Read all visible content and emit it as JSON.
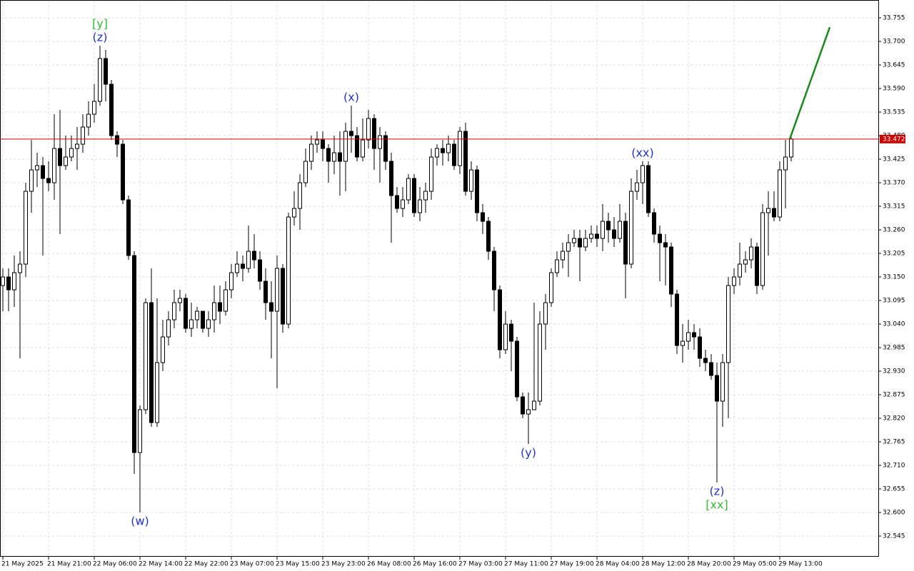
{
  "chart_data": {
    "type": "candlestick",
    "categories": [
      "21 May 2025",
      null,
      null,
      null,
      null,
      null,
      null,
      null,
      "21 May 21:00",
      null,
      null,
      null,
      null,
      null,
      null,
      null,
      "22 May 06:00",
      null,
      null,
      null,
      null,
      null,
      null,
      null,
      "22 May 14:00",
      null,
      null,
      null,
      null,
      null,
      null,
      null,
      "22 May 22:00",
      null,
      null,
      null,
      null,
      null,
      null,
      null,
      "23 May 07:00",
      null,
      null,
      null,
      null,
      null,
      null,
      null,
      "23 May 15:00",
      null,
      null,
      null,
      null,
      null,
      null,
      null,
      "23 May 23:00",
      null,
      null,
      null,
      null,
      null,
      null,
      null,
      "26 May 08:00",
      null,
      null,
      null,
      null,
      null,
      null,
      null,
      "26 May 16:00",
      null,
      null,
      null,
      null,
      null,
      null,
      null,
      "27 May 03:00",
      null,
      null,
      null,
      null,
      null,
      null,
      null,
      "27 May 11:00",
      null,
      null,
      null,
      null,
      null,
      null,
      null,
      "27 May 19:00",
      null,
      null,
      null,
      null,
      null,
      null,
      null,
      "28 May 04:00",
      null,
      null,
      null,
      null,
      null,
      null,
      null,
      "28 May 12:00",
      null,
      null,
      null,
      null,
      null,
      null,
      null,
      "28 May 20:00",
      null,
      null,
      null,
      null,
      null,
      null,
      null,
      "29 May 05:00",
      null,
      null,
      null,
      null,
      null,
      null,
      null,
      "29 May 13:00",
      null,
      null
    ],
    "open": [
      33.13,
      33.15,
      33.12,
      33.16,
      33.18,
      33.35,
      33.4,
      33.41,
      33.38,
      33.37,
      33.45,
      33.41,
      33.43,
      33.45,
      33.46,
      33.5,
      33.53,
      33.56,
      33.66,
      33.6,
      33.48,
      33.46,
      33.33,
      33.2,
      32.74,
      32.84,
      33.09,
      32.81,
      32.95,
      33.01,
      33.05,
      33.09,
      33.1,
      33.03,
      33.05,
      33.07,
      33.03,
      33.05,
      33.09,
      33.07,
      33.12,
      33.16,
      33.18,
      33.17,
      33.21,
      33.19,
      33.14,
      33.09,
      33.07,
      33.17,
      33.04,
      33.29,
      33.31,
      33.37,
      33.42,
      33.46,
      33.47,
      33.45,
      33.42,
      33.44,
      33.42,
      33.49,
      33.48,
      33.43,
      33.47,
      33.52,
      33.45,
      33.48,
      33.42,
      33.34,
      33.31,
      33.33,
      33.38,
      33.3,
      33.33,
      33.35,
      33.43,
      33.45,
      33.44,
      33.46,
      33.41,
      33.49,
      33.35,
      33.4,
      33.3,
      33.28,
      33.21,
      33.12,
      32.98,
      33.04,
      33.0,
      32.87,
      32.83,
      32.84,
      32.86,
      33.04,
      33.09,
      33.16,
      33.19,
      33.21,
      33.23,
      33.24,
      33.22,
      33.24,
      33.25,
      33.24,
      33.28,
      33.26,
      33.24,
      33.28,
      33.18,
      33.35,
      33.37,
      33.41,
      33.3,
      33.25,
      33.23,
      33.22,
      33.11,
      32.99,
      33.0,
      33.02,
      33.01,
      32.96,
      32.95,
      32.92,
      32.86,
      32.95,
      33.13,
      33.15,
      33.18,
      33.19,
      33.22,
      33.13,
      33.3,
      33.31,
      33.29,
      33.4,
      33.43
    ],
    "high": [
      33.17,
      33.17,
      33.2,
      33.21,
      33.37,
      33.47,
      33.44,
      33.43,
      33.42,
      33.53,
      33.54,
      33.48,
      33.48,
      33.5,
      33.53,
      33.56,
      33.6,
      33.69,
      33.68,
      33.61,
      33.49,
      33.47,
      33.34,
      33.21,
      32.85,
      33.1,
      33.17,
      33.1,
      33.05,
      33.07,
      33.12,
      33.12,
      33.11,
      33.09,
      33.08,
      33.07,
      33.07,
      33.13,
      33.13,
      33.14,
      33.18,
      33.21,
      33.2,
      33.27,
      33.25,
      33.21,
      33.17,
      33.14,
      33.2,
      33.18,
      33.3,
      33.35,
      33.39,
      33.45,
      33.48,
      33.49,
      33.49,
      33.46,
      33.48,
      33.49,
      33.51,
      33.55,
      33.5,
      33.52,
      33.54,
      33.53,
      33.5,
      33.49,
      33.44,
      33.36,
      33.36,
      33.39,
      33.39,
      33.36,
      33.37,
      33.45,
      33.46,
      33.47,
      33.48,
      33.47,
      33.5,
      33.51,
      33.42,
      33.41,
      33.32,
      33.29,
      33.22,
      33.13,
      33.07,
      33.05,
      33.01,
      32.88,
      32.88,
      33.09,
      33.07,
      33.11,
      33.17,
      33.21,
      33.23,
      33.25,
      33.26,
      33.26,
      33.26,
      33.27,
      33.27,
      33.32,
      33.3,
      33.29,
      33.32,
      33.3,
      33.38,
      33.4,
      33.42,
      33.42,
      33.31,
      33.27,
      33.25,
      33.23,
      33.12,
      33.04,
      33.05,
      33.04,
      33.03,
      32.98,
      32.97,
      32.95,
      32.97,
      33.15,
      33.17,
      33.23,
      33.21,
      33.24,
      33.23,
      33.32,
      33.35,
      33.35,
      33.42,
      33.47,
      33.48
    ],
    "low": [
      33.07,
      33.07,
      33.08,
      32.96,
      33.15,
      33.3,
      33.36,
      33.2,
      33.35,
      33.33,
      33.25,
      33.4,
      33.42,
      33.4,
      33.44,
      33.48,
      33.51,
      33.55,
      33.56,
      33.47,
      33.43,
      33.32,
      33.19,
      32.69,
      32.6,
      32.83,
      32.8,
      32.8,
      32.93,
      32.99,
      33.03,
      33.07,
      33.02,
      33.01,
      33.03,
      33.02,
      33.01,
      33.02,
      33.04,
      33.06,
      33.1,
      33.15,
      33.14,
      33.16,
      33.17,
      33.12,
      33.05,
      32.96,
      32.89,
      33.02,
      33.03,
      33.27,
      33.26,
      33.36,
      33.4,
      33.44,
      33.42,
      33.37,
      33.39,
      33.34,
      33.35,
      33.44,
      33.42,
      33.42,
      33.45,
      33.4,
      33.37,
      33.4,
      33.23,
      33.3,
      33.29,
      33.32,
      33.29,
      33.28,
      33.3,
      33.33,
      33.41,
      33.41,
      33.42,
      33.4,
      33.39,
      33.34,
      33.33,
      33.28,
      33.25,
      33.19,
      33.07,
      32.96,
      32.97,
      32.93,
      32.86,
      32.82,
      32.76,
      32.85,
      32.85,
      32.98,
      33.08,
      33.15,
      33.17,
      33.15,
      33.22,
      33.14,
      33.21,
      33.23,
      33.22,
      33.21,
      33.23,
      33.22,
      33.23,
      33.1,
      33.17,
      33.33,
      33.32,
      33.29,
      33.23,
      33.14,
      33.13,
      33.08,
      32.97,
      32.95,
      32.98,
      32.98,
      32.94,
      32.93,
      32.91,
      32.67,
      32.8,
      32.82,
      33.11,
      33.13,
      33.16,
      33.17,
      33.11,
      33.12,
      33.2,
      33.28,
      33.28,
      33.31,
      33.42
    ],
    "close": [
      33.15,
      33.12,
      33.16,
      33.18,
      33.35,
      33.4,
      33.41,
      33.38,
      33.37,
      33.45,
      33.41,
      33.43,
      33.45,
      33.46,
      33.5,
      33.53,
      33.56,
      33.66,
      33.6,
      33.48,
      33.46,
      33.33,
      33.2,
      32.74,
      32.84,
      33.09,
      32.81,
      32.95,
      33.01,
      33.05,
      33.09,
      33.1,
      33.03,
      33.05,
      33.07,
      33.03,
      33.05,
      33.09,
      33.07,
      33.12,
      33.16,
      33.18,
      33.17,
      33.21,
      33.19,
      33.14,
      33.09,
      33.07,
      33.17,
      33.04,
      33.29,
      33.31,
      33.37,
      33.42,
      33.46,
      33.47,
      33.45,
      33.42,
      33.44,
      33.42,
      33.49,
      33.48,
      33.43,
      33.47,
      33.52,
      33.45,
      33.48,
      33.42,
      33.34,
      33.31,
      33.33,
      33.38,
      33.3,
      33.33,
      33.35,
      33.43,
      33.45,
      33.44,
      33.46,
      33.41,
      33.49,
      33.35,
      33.4,
      33.3,
      33.28,
      33.21,
      33.12,
      32.98,
      33.04,
      33.0,
      32.87,
      32.83,
      32.84,
      32.86,
      33.04,
      33.09,
      33.16,
      33.19,
      33.21,
      33.23,
      33.24,
      33.22,
      33.24,
      33.25,
      33.24,
      33.28,
      33.26,
      33.24,
      33.28,
      33.18,
      33.35,
      33.37,
      33.41,
      33.3,
      33.25,
      33.23,
      33.22,
      33.11,
      32.99,
      33.0,
      33.02,
      33.01,
      32.96,
      32.95,
      32.92,
      32.86,
      32.95,
      33.13,
      33.15,
      33.18,
      33.19,
      33.22,
      33.13,
      33.3,
      33.31,
      33.29,
      33.4,
      33.43,
      33.472
    ],
    "ylim": [
      32.4967,
      33.7967
    ],
    "yticks": [
      33.755,
      {
        "value": 33.7,
        "label": "33.700"
      },
      33.645,
      {
        "value": 33.59,
        "label": "33.590"
      },
      33.535,
      {
        "value": 33.48,
        "label": "33.480"
      },
      33.425,
      {
        "value": 33.37,
        "label": "33.370"
      },
      33.315,
      {
        "value": 33.26,
        "label": "33.260"
      },
      33.205,
      {
        "value": 33.15,
        "label": "33.150"
      },
      33.095,
      {
        "value": 33.04,
        "label": "33.040"
      },
      32.985,
      {
        "value": 32.93,
        "label": "32.930"
      },
      32.875,
      {
        "value": 32.82,
        "label": "32.820"
      },
      32.765,
      {
        "value": 32.71,
        "label": "32.710"
      },
      32.655,
      {
        "value": 32.6,
        "label": "32.600"
      },
      32.545
    ],
    "grid": true,
    "current_price": 33.472,
    "current_price_color": "#cc0000",
    "forecast": {
      "color": "#1a8a1a",
      "x": [
        138,
        145
      ],
      "values": [
        33.472,
        33.733
      ]
    },
    "annotations": [
      {
        "text": "(z)",
        "candle": 17,
        "side": "above",
        "color": "#2233cc"
      },
      {
        "text": "[y]",
        "candle": 17,
        "side": "above",
        "color": "#33bb33"
      },
      {
        "text": "(w)",
        "candle": 24,
        "side": "below",
        "color": "#2233cc"
      },
      {
        "text": "(x)",
        "candle": 61,
        "side": "above",
        "color": "#2233cc"
      },
      {
        "text": "(y)",
        "candle": 92,
        "side": "below",
        "color": "#2233cc"
      },
      {
        "text": "(xx)",
        "candle": 112,
        "side": "above",
        "color": "#2233cc"
      },
      {
        "text": "(z)",
        "candle": 125,
        "side": "below",
        "color": "#2233cc"
      },
      {
        "text": "[xx]",
        "candle": 125,
        "side": "below",
        "color": "#33bb33"
      }
    ]
  }
}
